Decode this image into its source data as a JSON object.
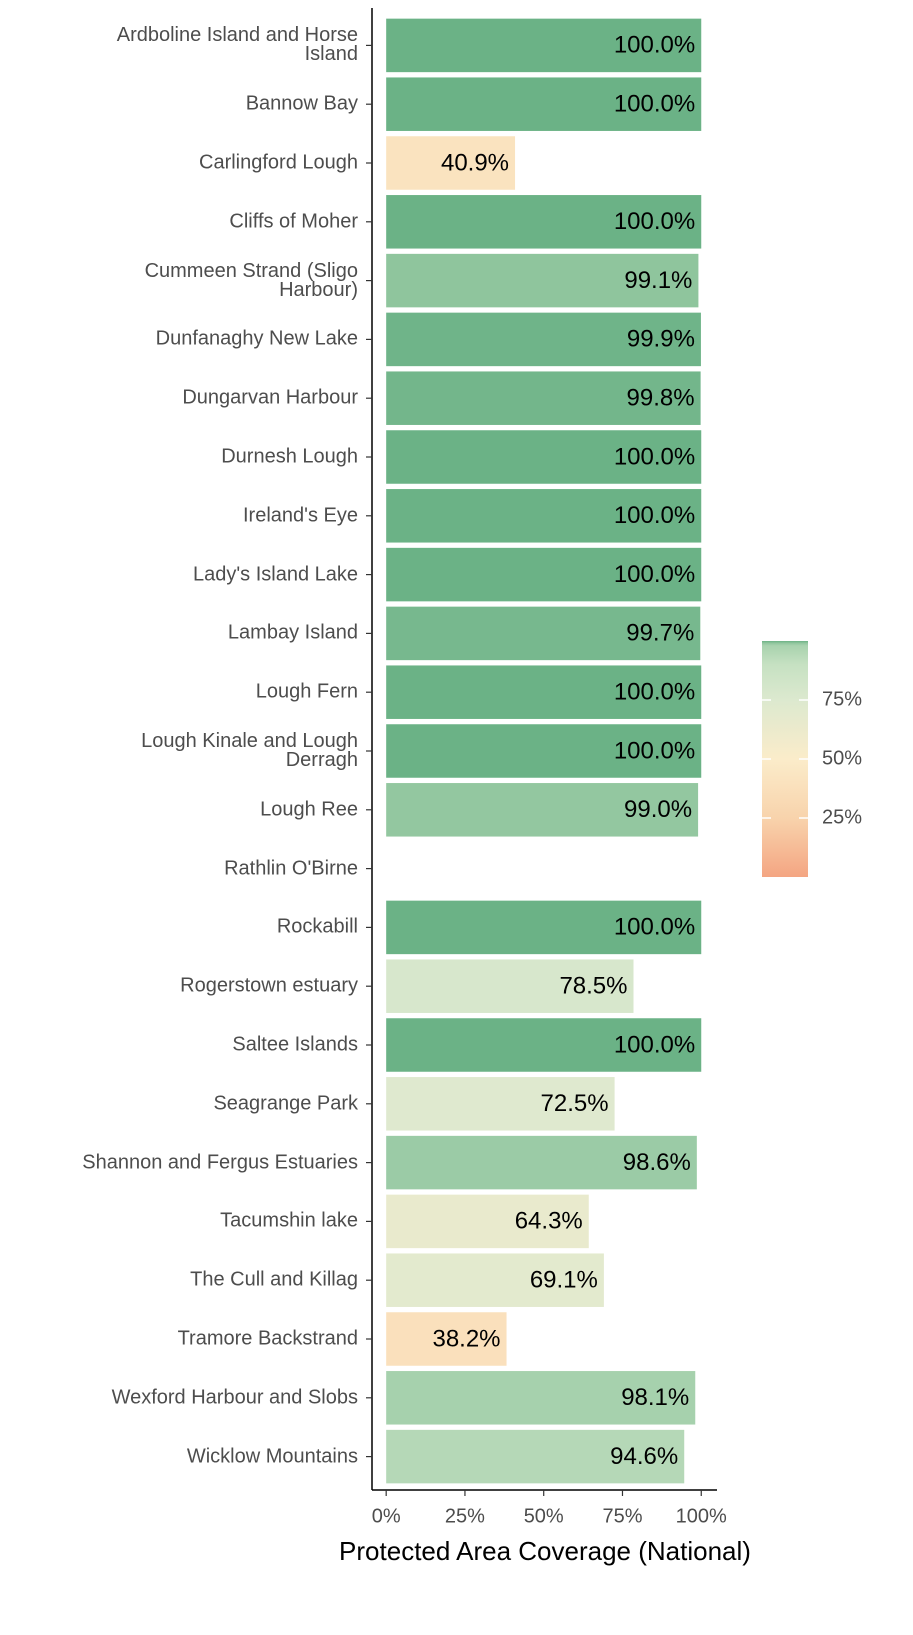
{
  "chart_data": {
    "type": "bar",
    "orientation": "horizontal",
    "x_label": "Protected Area Coverage (National)",
    "categories": [
      "Ardboline Island and Horse\nIsland",
      "Bannow Bay",
      "Carlingford Lough",
      "Cliffs of Moher",
      "Cummeen Strand (Sligo\nHarbour)",
      "Dunfanaghy New Lake",
      "Dungarvan Harbour",
      "Durnesh Lough",
      "Ireland's Eye",
      "Lady's Island Lake",
      "Lambay Island",
      "Lough Fern",
      "Lough Kinale and Lough\nDerragh",
      "Lough Ree",
      "Rathlin O'Birne",
      "Rockabill",
      "Rogerstown estuary",
      "Saltee Islands",
      "Seagrange Park",
      "Shannon and Fergus Estuaries",
      "Tacumshin lake",
      "The Cull and Killag",
      "Tramore Backstrand",
      "Wexford Harbour and Slobs",
      "Wicklow Mountains"
    ],
    "values": [
      100,
      100,
      40.9,
      100,
      99.1,
      99.9,
      99.8,
      100,
      100,
      100,
      99.7,
      100,
      100,
      99.0,
      null,
      100,
      78.5,
      100,
      72.5,
      98.6,
      64.3,
      69.1,
      38.2,
      98.1,
      94.6
    ],
    "value_labels": [
      "100.0%",
      "100.0%",
      "40.9%",
      "100.0%",
      "99.1%",
      "99.9%",
      "99.8%",
      "100.0%",
      "100.0%",
      "100.0%",
      "99.7%",
      "100.0%",
      "100.0%",
      "99.0%",
      null,
      "100.0%",
      "78.5%",
      "100.0%",
      "72.5%",
      "98.6%",
      "64.3%",
      "69.1%",
      "38.2%",
      "98.1%",
      "94.6%"
    ],
    "xlim": [
      -4.5,
      105
    ],
    "xticks": [
      {
        "value": 0,
        "label": "0%"
      },
      {
        "value": 25,
        "label": "25%"
      },
      {
        "value": 50,
        "label": "50%"
      },
      {
        "value": 75,
        "label": "75%"
      },
      {
        "value": 100,
        "label": "100%"
      }
    ],
    "colorscale": [
      {
        "value": 0,
        "color": "#f4a582"
      },
      {
        "value": 25,
        "color": "#f8d3ac"
      },
      {
        "value": 50,
        "color": "#fbecca"
      },
      {
        "value": 75,
        "color": "#dce9cf"
      },
      {
        "value": 90,
        "color": "#c6e1c2"
      },
      {
        "value": 98,
        "color": "#a8d2ae"
      },
      {
        "value": 99,
        "color": "#93c7a0"
      },
      {
        "value": 100,
        "color": "#6bb286"
      }
    ],
    "legend_lim": [
      0,
      100
    ],
    "legend_ticks": [
      {
        "value": 25,
        "label": "25%"
      },
      {
        "value": 50,
        "label": "50%"
      },
      {
        "value": 75,
        "label": "75%"
      }
    ],
    "grid": false
  }
}
